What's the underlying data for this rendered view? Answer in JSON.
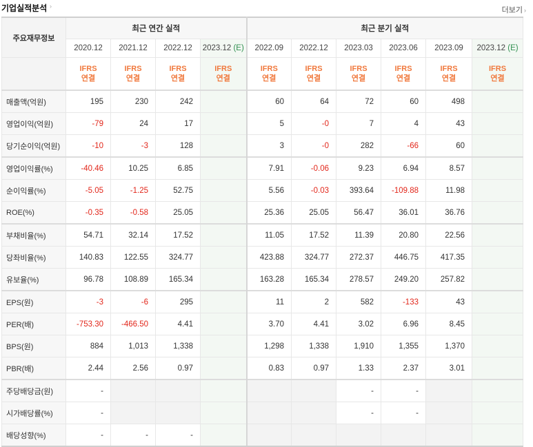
{
  "section_title": "기업실적분석",
  "more_link": "더보기",
  "header": {
    "label": "주요재무정보",
    "annual_group": "최근 연간 실적",
    "quarter_group": "최근 분기 실적",
    "periods": [
      {
        "date": "2020.12",
        "est": "",
        "ifrs1": "IFRS",
        "ifrs2": "연결"
      },
      {
        "date": "2021.12",
        "est": "",
        "ifrs1": "IFRS",
        "ifrs2": "연결"
      },
      {
        "date": "2022.12",
        "est": "",
        "ifrs1": "IFRS",
        "ifrs2": "연결"
      },
      {
        "date": "2023.12",
        "est": "(E)",
        "ifrs1": "IFRS",
        "ifrs2": "연결"
      },
      {
        "date": "2022.09",
        "est": "",
        "ifrs1": "IFRS",
        "ifrs2": "연결"
      },
      {
        "date": "2022.12",
        "est": "",
        "ifrs1": "IFRS",
        "ifrs2": "연결"
      },
      {
        "date": "2023.03",
        "est": "",
        "ifrs1": "IFRS",
        "ifrs2": "연결"
      },
      {
        "date": "2023.06",
        "est": "",
        "ifrs1": "IFRS",
        "ifrs2": "연결"
      },
      {
        "date": "2023.09",
        "est": "",
        "ifrs1": "IFRS",
        "ifrs2": "연결"
      },
      {
        "date": "2023.12",
        "est": "(E)",
        "ifrs1": "IFRS",
        "ifrs2": "연결"
      }
    ]
  },
  "rows": [
    {
      "label": "매출액(억원)",
      "values": [
        "195",
        "230",
        "242",
        "",
        "60",
        "64",
        "72",
        "60",
        "498",
        ""
      ]
    },
    {
      "label": "영업이익(억원)",
      "values": [
        "-79",
        "24",
        "17",
        "",
        "5",
        "-0",
        "7",
        "4",
        "43",
        ""
      ]
    },
    {
      "label": "당기순이익(억원)",
      "values": [
        "-10",
        "-3",
        "128",
        "",
        "3",
        "-0",
        "282",
        "-66",
        "60",
        ""
      ]
    },
    {
      "label": "영업이익률(%)",
      "values": [
        "-40.46",
        "10.25",
        "6.85",
        "",
        "7.91",
        "-0.06",
        "9.23",
        "6.94",
        "8.57",
        ""
      ]
    },
    {
      "label": "순이익률(%)",
      "values": [
        "-5.05",
        "-1.25",
        "52.75",
        "",
        "5.56",
        "-0.03",
        "393.64",
        "-109.88",
        "11.98",
        ""
      ]
    },
    {
      "label": "ROE(%)",
      "values": [
        "-0.35",
        "-0.58",
        "25.05",
        "",
        "25.36",
        "25.05",
        "56.47",
        "36.01",
        "36.76",
        ""
      ]
    },
    {
      "label": "부채비율(%)",
      "values": [
        "54.71",
        "32.14",
        "17.52",
        "",
        "11.05",
        "17.52",
        "11.39",
        "20.80",
        "22.56",
        ""
      ]
    },
    {
      "label": "당좌비율(%)",
      "values": [
        "140.83",
        "122.55",
        "324.77",
        "",
        "423.88",
        "324.77",
        "272.37",
        "446.75",
        "417.35",
        ""
      ]
    },
    {
      "label": "유보율(%)",
      "values": [
        "96.78",
        "108.89",
        "165.34",
        "",
        "163.28",
        "165.34",
        "278.57",
        "249.20",
        "257.82",
        ""
      ]
    },
    {
      "label": "EPS(원)",
      "values": [
        "-3",
        "-6",
        "295",
        "",
        "11",
        "2",
        "582",
        "-133",
        "43",
        ""
      ]
    },
    {
      "label": "PER(배)",
      "values": [
        "-753.30",
        "-466.50",
        "4.41",
        "",
        "3.70",
        "4.41",
        "3.02",
        "6.96",
        "8.45",
        ""
      ]
    },
    {
      "label": "BPS(원)",
      "values": [
        "884",
        "1,013",
        "1,338",
        "",
        "1,298",
        "1,338",
        "1,910",
        "1,355",
        "1,370",
        ""
      ]
    },
    {
      "label": "PBR(배)",
      "values": [
        "2.44",
        "2.56",
        "0.97",
        "",
        "0.83",
        "0.97",
        "1.33",
        "2.37",
        "3.01",
        ""
      ]
    },
    {
      "label": "주당배당금(원)",
      "values": [
        "-",
        null,
        null,
        "",
        null,
        null,
        "-",
        "-",
        null,
        ""
      ]
    },
    {
      "label": "시가배당률(%)",
      "values": [
        "-",
        null,
        null,
        "",
        null,
        null,
        "-",
        "-",
        null,
        ""
      ]
    },
    {
      "label": "배당성향(%)",
      "values": [
        "-",
        "-",
        "-",
        "",
        null,
        null,
        null,
        null,
        null,
        ""
      ]
    }
  ]
}
